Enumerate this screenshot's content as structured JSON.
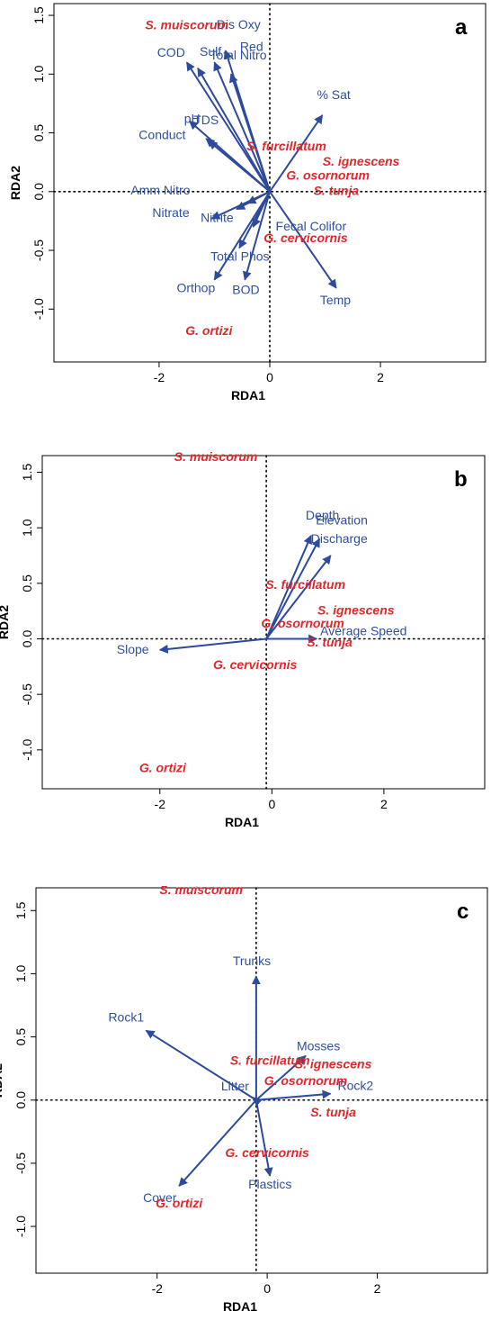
{
  "colors": {
    "vector": "#2d4a9c",
    "variable_text": "#2f4f9f",
    "species_text": "#e3262a",
    "frame": "#000000"
  },
  "chart_data": [
    {
      "type": "scatter",
      "panel": "a",
      "xlabel": "RDA1",
      "ylabel": "RDA2",
      "xticks": [
        "-2",
        "0",
        "2"
      ],
      "yticks": [
        "-1.0",
        "-0.5",
        "0.0",
        "0.5",
        "1.0",
        "1.5"
      ],
      "xlim": [
        -3.9,
        3.9
      ],
      "ylim": [
        -1.45,
        1.6
      ],
      "origin": [
        0.0,
        0.0
      ],
      "vectors": [
        {
          "label": "COD",
          "x": -1.5,
          "y": 1.1
        },
        {
          "label": "Sulf",
          "x": -1.3,
          "y": 1.05
        },
        {
          "label": "Dis Oxy",
          "x": -0.8,
          "y": 1.2
        },
        {
          "label": "Red",
          "x": -0.7,
          "y": 1.0
        },
        {
          "label": "Total Nitro",
          "x": -1.0,
          "y": 1.1
        },
        {
          "label": "pH",
          "x": -1.45,
          "y": 0.6
        },
        {
          "label": "TDS",
          "x": -1.15,
          "y": 0.45
        },
        {
          "label": "Conduct",
          "x": -1.1,
          "y": 0.43
        },
        {
          "label": "% Sat",
          "x": 0.95,
          "y": 0.65
        },
        {
          "label": "Amm Nitro",
          "x": -0.4,
          "y": -0.1
        },
        {
          "label": "Nitrate",
          "x": -1.05,
          "y": -0.23
        },
        {
          "label": "Nitrite",
          "x": -0.6,
          "y": -0.15
        },
        {
          "label": "Total Phos",
          "x": -0.55,
          "y": -0.48
        },
        {
          "label": "Fecal Colifor",
          "x": -0.3,
          "y": -0.3
        },
        {
          "label": "Orthop",
          "x": -1.0,
          "y": -0.75
        },
        {
          "label": "BOD",
          "x": -0.45,
          "y": -0.75
        },
        {
          "label": "Temp",
          "x": 1.2,
          "y": -0.82
        }
      ],
      "species": [
        {
          "label": "S. muiscorum",
          "x": -1.5,
          "y": 1.38
        },
        {
          "label": "S. furcillatum",
          "x": 0.3,
          "y": 0.35
        },
        {
          "label": "S. ignescens",
          "x": 1.65,
          "y": 0.22
        },
        {
          "label": "G. osornorum",
          "x": 1.05,
          "y": 0.1
        },
        {
          "label": "S. tunja",
          "x": 1.2,
          "y": -0.03
        },
        {
          "label": "G. cervicornis",
          "x": 0.65,
          "y": -0.43
        },
        {
          "label": "G. ortizi",
          "x": -1.1,
          "y": -1.22
        }
      ]
    },
    {
      "type": "scatter",
      "panel": "b",
      "xlabel": "RDA1",
      "ylabel": "RDA2",
      "xticks": [
        "-2",
        "0",
        "2"
      ],
      "yticks": [
        "-1.0",
        "-0.5",
        "0.0",
        "0.5",
        "1.0",
        "1.5"
      ],
      "xlim": [
        -4.1,
        3.8
      ],
      "ylim": [
        -1.35,
        1.65
      ],
      "origin": [
        -0.1,
        0.0
      ],
      "vectors": [
        {
          "label": "Depth",
          "x": 0.7,
          "y": 0.93
        },
        {
          "label": "Elevation",
          "x": 0.85,
          "y": 0.9
        },
        {
          "label": "Discharge",
          "x": 1.05,
          "y": 0.75
        },
        {
          "label": "Average Speed",
          "x": 0.8,
          "y": 0.0
        },
        {
          "label": "Slope",
          "x": -2.0,
          "y": -0.1
        }
      ],
      "species": [
        {
          "label": "S. muiscorum",
          "x": -1.0,
          "y": 1.6
        },
        {
          "label": "S. furcillatum",
          "x": 0.6,
          "y": 0.45
        },
        {
          "label": "S. ignescens",
          "x": 1.5,
          "y": 0.22
        },
        {
          "label": "G. osornorum",
          "x": 0.55,
          "y": 0.1
        },
        {
          "label": "S. tunja",
          "x": 1.03,
          "y": -0.07
        },
        {
          "label": "G. cervicornis",
          "x": -0.3,
          "y": -0.27
        },
        {
          "label": "G. ortizi",
          "x": -1.95,
          "y": -1.2
        }
      ]
    },
    {
      "type": "scatter",
      "panel": "c",
      "xlabel": "RDA1",
      "ylabel": "RDA2",
      "xticks": [
        "-2",
        "0",
        "2"
      ],
      "yticks": [
        "-1.0",
        "-0.5",
        "0.0",
        "0.5",
        "1.0",
        "1.5"
      ],
      "xlim": [
        -4.2,
        4.0
      ],
      "ylim": [
        -1.37,
        1.68
      ],
      "origin": [
        -0.2,
        0.0
      ],
      "vectors": [
        {
          "label": "Trunks",
          "x": -0.2,
          "y": 0.98
        },
        {
          "label": "Rock1",
          "x": -2.2,
          "y": 0.55
        },
        {
          "label": "Mosses",
          "x": 0.7,
          "y": 0.35
        },
        {
          "label": "Litter",
          "x": -0.25,
          "y": 0.02
        },
        {
          "label": "Rock2",
          "x": 1.15,
          "y": 0.05
        },
        {
          "label": "Plastics",
          "x": 0.05,
          "y": -0.6
        },
        {
          "label": "Cover",
          "x": -1.6,
          "y": -0.68
        }
      ],
      "species": [
        {
          "label": "S. muiscorum",
          "x": -1.2,
          "y": 1.63
        },
        {
          "label": "S. furcillatum",
          "x": 0.05,
          "y": 0.28
        },
        {
          "label": "S. ignescens",
          "x": 1.2,
          "y": 0.25
        },
        {
          "label": "G. osornorum",
          "x": 0.7,
          "y": 0.12
        },
        {
          "label": "S. tunja",
          "x": 1.2,
          "y": -0.13
        },
        {
          "label": "G. cervicornis",
          "x": 0.0,
          "y": -0.45
        },
        {
          "label": "G. ortizi",
          "x": -1.6,
          "y": -0.85
        }
      ]
    }
  ]
}
